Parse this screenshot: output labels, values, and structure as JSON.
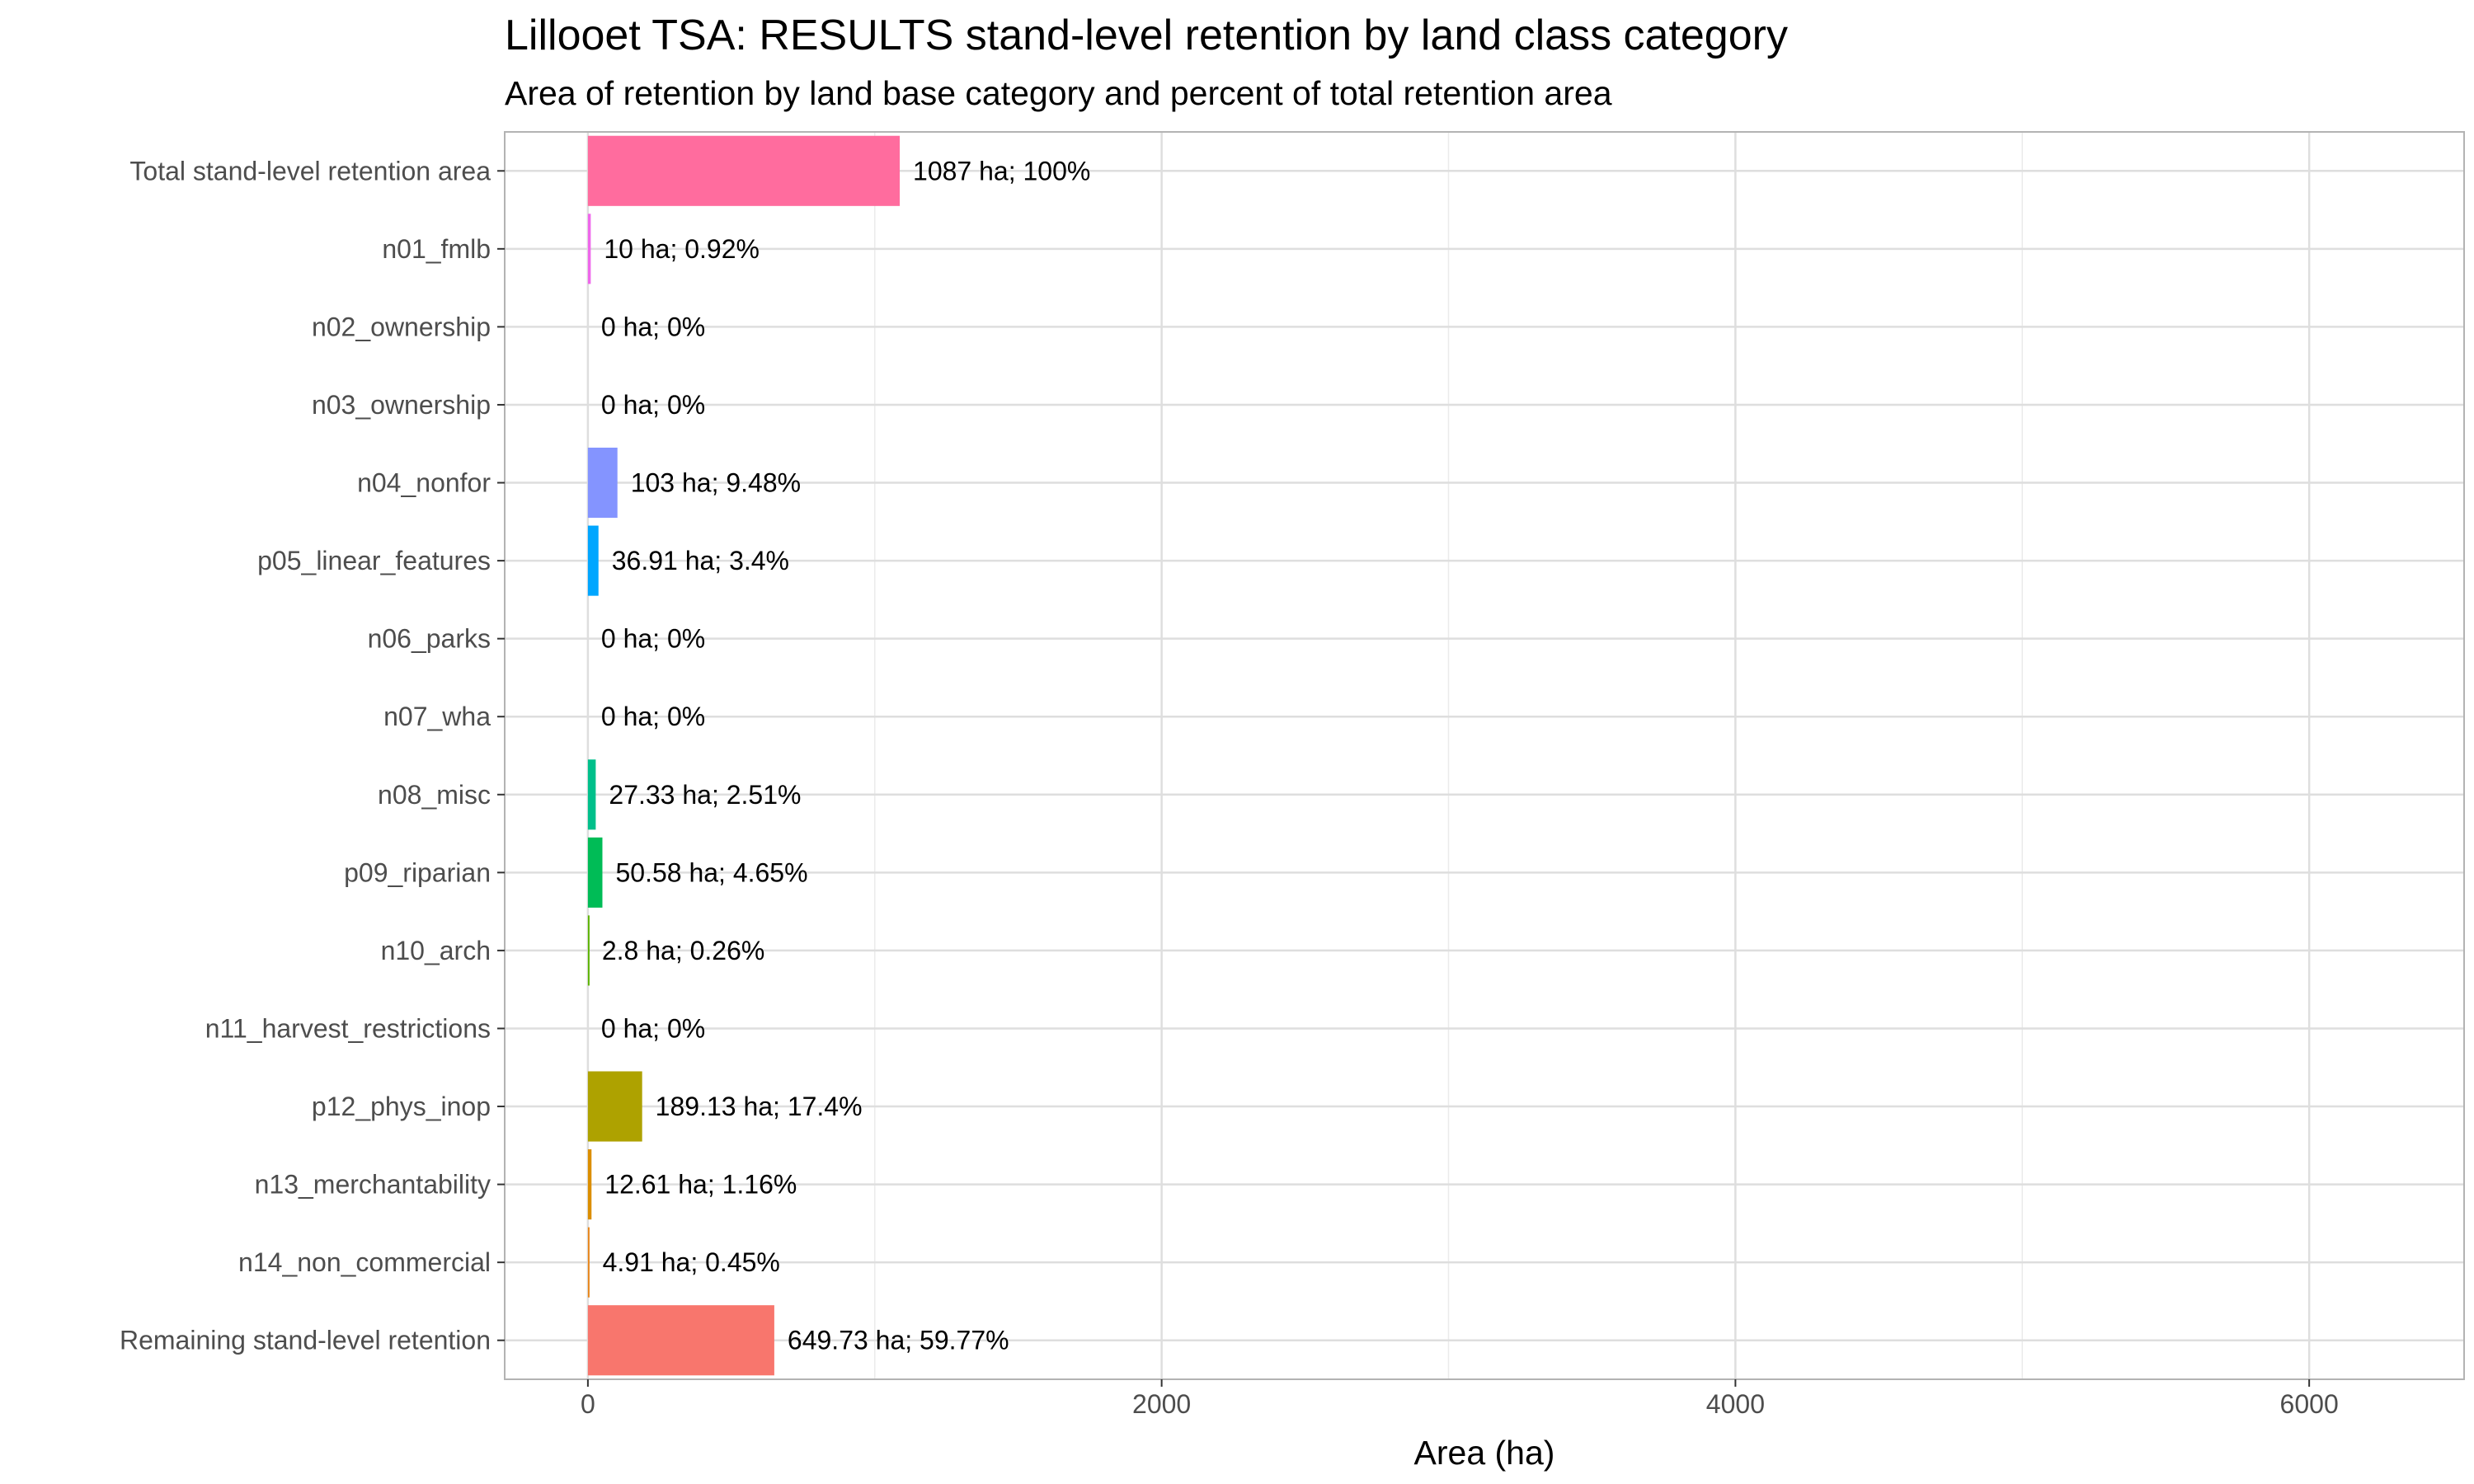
{
  "chart_data": {
    "type": "bar",
    "orientation": "horizontal",
    "title": "Lillooet TSA: RESULTS stand-level retention by land class category",
    "subtitle": "Area of retention by land base category and percent of total retention area",
    "xlabel": "Area (ha)",
    "ylabel": "",
    "xlim": [
      -290,
      6540
    ],
    "xticks": [
      0,
      2000,
      4000,
      6000
    ],
    "grid": true,
    "legend": "none",
    "categories": [
      "Total stand-level retention area",
      "n01_fmlb",
      "n02_ownership",
      "n03_ownership",
      "n04_nonfor",
      "p05_linear_features",
      "n06_parks",
      "n07_wha",
      "n08_misc",
      "p09_riparian",
      "n10_arch",
      "n11_harvest_restrictions",
      "p12_phys_inop",
      "n13_merchantability",
      "n14_non_commercial",
      "Remaining stand-level retention"
    ],
    "values": [
      1087,
      10,
      0,
      0,
      103,
      36.91,
      0,
      0,
      27.33,
      50.58,
      2.8,
      0,
      189.13,
      12.61,
      4.91,
      649.73
    ],
    "labels": [
      "1087 ha; 100%",
      "10 ha; 0.92%",
      "0 ha; 0%",
      "0 ha; 0%",
      "103 ha; 9.48%",
      "36.91 ha; 3.4%",
      "0 ha; 0%",
      "0 ha; 0%",
      "27.33 ha; 2.51%",
      "50.58 ha; 4.65%",
      "2.8 ha; 0.26%",
      "0 ha; 0%",
      "189.13 ha; 17.4%",
      "12.61 ha; 1.16%",
      "4.91 ha; 0.45%",
      "649.73 ha; 59.77%"
    ],
    "colors": [
      "#FF6C9E",
      "#EF67EB",
      "#C77CFF",
      "#A58AFF",
      "#8494FF",
      "#00A6FF",
      "#00B8E7",
      "#00BFC4",
      "#00C08B",
      "#00BC56",
      "#5BB300",
      "#7CAE00",
      "#AEA200",
      "#DB8E00",
      "#E7861B",
      "#F8766D"
    ]
  }
}
